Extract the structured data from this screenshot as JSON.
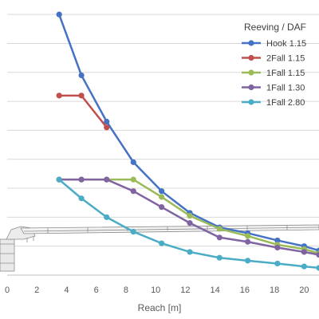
{
  "chart_data": {
    "type": "line",
    "xlabel": "Reach [m]",
    "ylabel": "",
    "xlim": [
      0,
      21
    ],
    "ylim": [
      0,
      9.5
    ],
    "x_ticks": [
      "0",
      "2",
      "4",
      "6",
      "8",
      "10",
      "12",
      "14",
      "16",
      "18",
      "20"
    ],
    "y_ticks_visible": false,
    "grid": "horizontal",
    "legend": {
      "title": "Reeving / DAF",
      "placement": "top-right"
    },
    "series": [
      {
        "name": "Hook 1.15",
        "color": "#4472C4",
        "x": [
          3.5,
          5.0,
          6.7,
          8.5,
          10.4,
          12.3,
          14.3,
          16.2,
          18.2,
          20.0,
          21.0
        ],
        "y": [
          9.0,
          6.9,
          5.3,
          3.9,
          2.9,
          2.15,
          1.65,
          1.45,
          1.2,
          1.0,
          0.85
        ]
      },
      {
        "name": "2Fall 1.15",
        "color": "#C0504D",
        "x": [
          3.5,
          5.0,
          6.7
        ],
        "y": [
          6.2,
          6.2,
          5.1
        ]
      },
      {
        "name": "1Fall 1.15",
        "color": "#9BBB59",
        "x": [
          3.5,
          5.0,
          6.7,
          8.5,
          10.4,
          12.3,
          14.3,
          16.2,
          18.2,
          20.0,
          21.0
        ],
        "y": [
          3.3,
          3.3,
          3.3,
          3.3,
          2.7,
          2.05,
          1.6,
          1.35,
          1.05,
          0.9,
          0.75
        ]
      },
      {
        "name": "1Fall 1.30",
        "color": "#8064A2",
        "x": [
          3.5,
          5.0,
          6.7,
          8.5,
          10.4,
          12.3,
          14.3,
          16.2,
          18.2,
          20.0,
          21.0
        ],
        "y": [
          3.3,
          3.3,
          3.3,
          2.9,
          2.35,
          1.8,
          1.3,
          1.15,
          0.95,
          0.8,
          0.7
        ]
      },
      {
        "name": "1Fall 2.80",
        "color": "#4BACC6",
        "x": [
          3.5,
          5.0,
          6.7,
          8.5,
          10.4,
          12.3,
          14.3,
          16.2,
          18.2,
          20.0,
          21.0
        ],
        "y": [
          3.3,
          2.65,
          2.0,
          1.5,
          1.1,
          0.8,
          0.6,
          0.5,
          0.4,
          0.3,
          0.25
        ]
      }
    ]
  }
}
